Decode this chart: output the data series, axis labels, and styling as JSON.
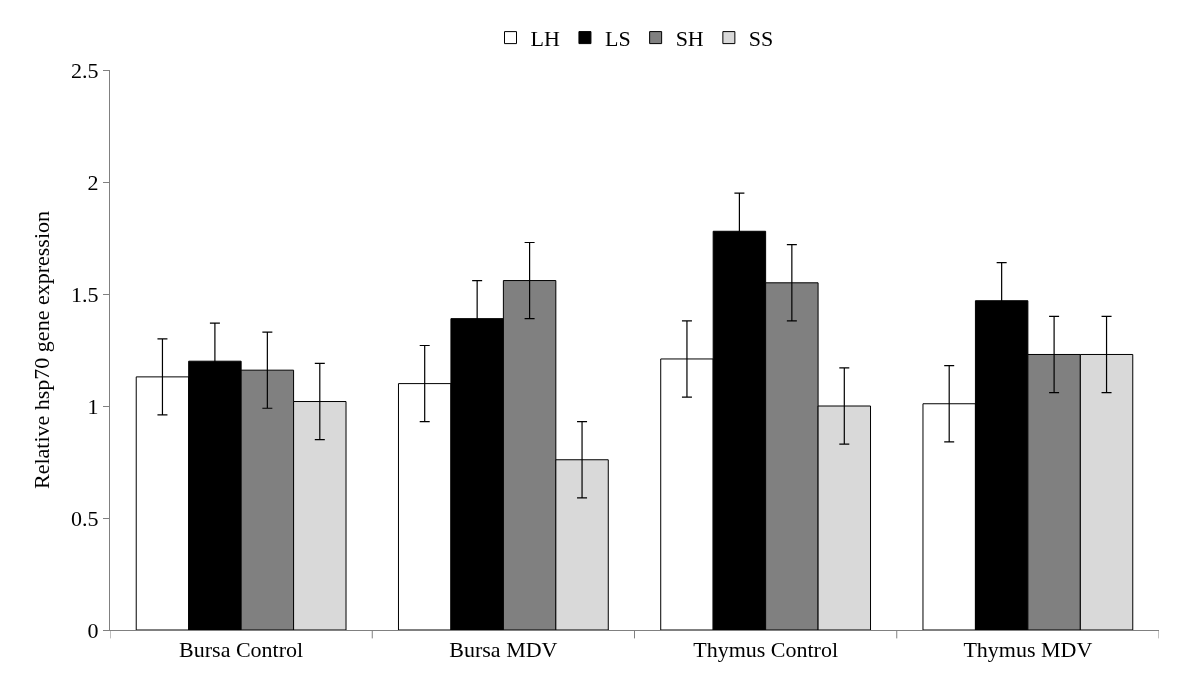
{
  "chart_data": {
    "type": "bar",
    "ylabel": "Relative hsp70 gene expression",
    "categories": [
      "Bursa Control",
      "Bursa MDV",
      "Thymus Control",
      "Thymus MDV"
    ],
    "series": [
      {
        "name": "LH",
        "color": "#ffffff",
        "values": [
          1.13,
          1.1,
          1.21,
          1.01
        ],
        "errors": [
          0.17,
          0.17,
          0.17,
          0.17
        ]
      },
      {
        "name": "LS",
        "color": "#000000",
        "values": [
          1.2,
          1.39,
          1.78,
          1.47
        ],
        "errors": [
          0.17,
          0.17,
          0.17,
          0.17
        ]
      },
      {
        "name": "SH",
        "color": "#808080",
        "values": [
          1.16,
          1.56,
          1.55,
          1.23
        ],
        "errors": [
          0.17,
          0.17,
          0.17,
          0.17
        ]
      },
      {
        "name": "SS",
        "color": "#d9d9d9",
        "values": [
          1.02,
          0.76,
          1.0,
          1.23
        ],
        "errors": [
          0.17,
          0.17,
          0.17,
          0.17
        ]
      }
    ],
    "ylim": [
      0,
      2.5
    ],
    "yticks": [
      0,
      0.5,
      1,
      1.5,
      2,
      2.5
    ],
    "legend": "top"
  }
}
